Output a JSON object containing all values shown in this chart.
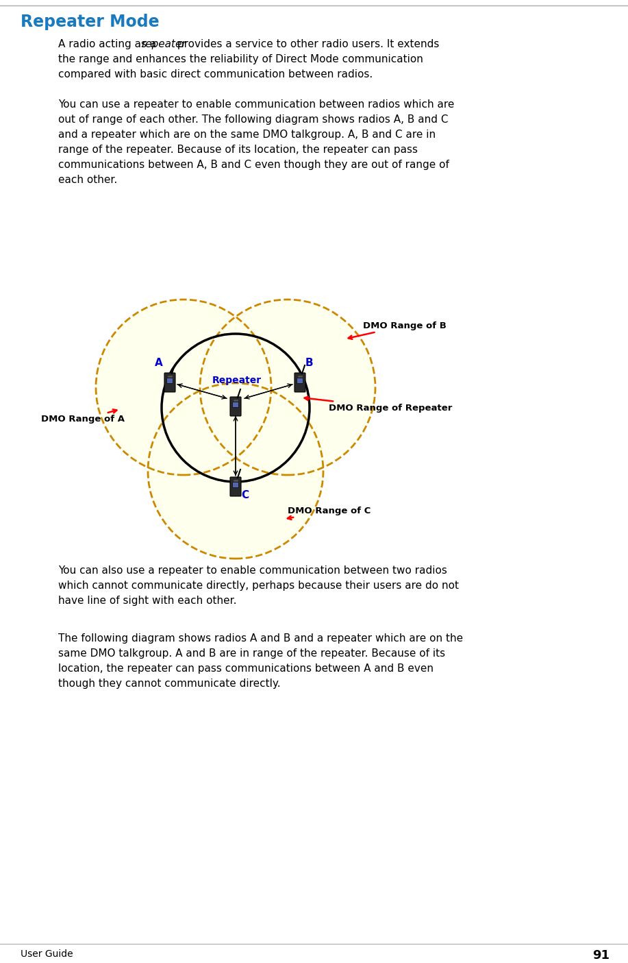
{
  "title": "Repeater Mode",
  "title_color": "#1a7abf",
  "background_color": "#ffffff",
  "page_number": "91",
  "footer_left": "User Guide",
  "dashed_circle_color": "#cc8800",
  "fill_color": "#ffffee",
  "arrow_color": "#cc0000",
  "comm_arrow_color": "#000000",
  "header_line_color": "#aaaaaa",
  "footer_line_color": "#aaaaaa",
  "diagram_label_color": "#0000cc",
  "label_DMO_A": "DMO Range of A",
  "label_DMO_B": "DMO Range of B",
  "label_DMO_C": "DMO Range of C",
  "label_DMO_Repeater": "DMO Range of Repeater",
  "p1_lines": [
    "the range and enhances the reliability of Direct Mode communication",
    "compared with basic direct communication between radios."
  ],
  "p2_lines": [
    "You can use a repeater to enable communication between radios which are",
    "out of range of each other. The following diagram shows radios A, B and C",
    "and a repeater which are on the same DMO talkgroup. A, B and C are in",
    "range of the repeater. Because of its location, the repeater can pass",
    "communications between A, B and C even though they are out of range of",
    "each other."
  ],
  "p3_lines": [
    "You can also use a repeater to enable communication between two radios",
    "which cannot communicate directly, perhaps because their users are do not",
    "have line of sight with each other."
  ],
  "p4_lines": [
    "The following diagram shows radios A and B and a repeater which are on the",
    "same DMO talkgroup. A and B are in range of the repeater. Because of its",
    "location, the repeater can pass communications between A and B even",
    "though they cannot communicate directly."
  ]
}
